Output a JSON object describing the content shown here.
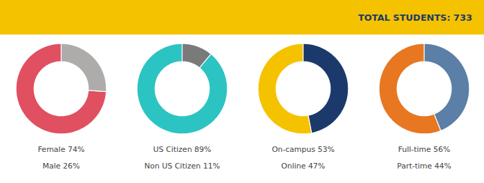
{
  "chart_data": [
    {
      "type": "donut",
      "title": "TOTAL STUDENTS: 733",
      "categories": [
        "Female 74%",
        "Male 26%"
      ],
      "values": [
        74,
        26
      ],
      "colors": [
        "#E05060",
        "#AEABAB"
      ]
    },
    {
      "type": "donut",
      "categories": [
        "US Citizen 89%",
        "Non US Citizen 11%"
      ],
      "values": [
        89,
        11
      ],
      "colors": [
        "#2BC4C3",
        "#7A7A7A"
      ]
    },
    {
      "type": "donut",
      "categories": [
        "On-campus 53%",
        "Online 47%"
      ],
      "values": [
        53,
        47
      ],
      "colors": [
        "#F5C200",
        "#1B3A6B"
      ]
    },
    {
      "type": "donut",
      "categories": [
        "Full-time 56%",
        "Part-time 44%"
      ],
      "values": [
        56,
        44
      ],
      "colors": [
        "#E87722",
        "#5B7FA6"
      ]
    }
  ]
}
